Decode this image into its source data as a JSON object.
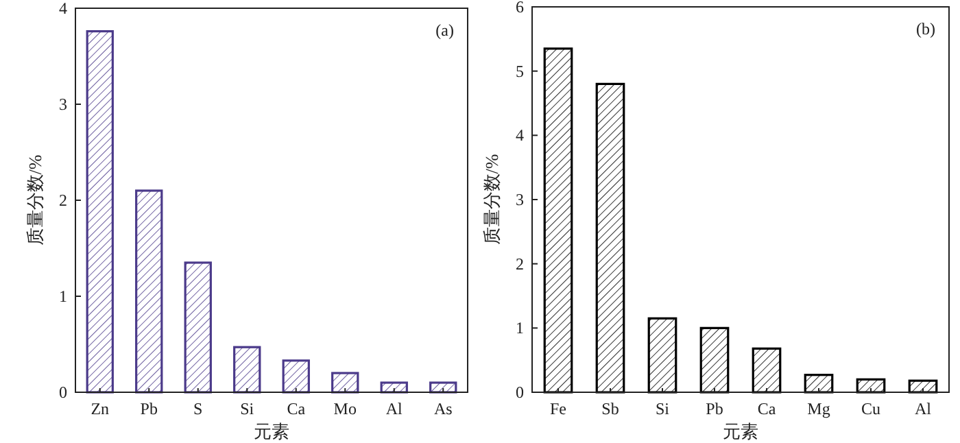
{
  "chart_data": [
    {
      "type": "bar",
      "categories": [
        "Zn",
        "Pb",
        "S",
        "Si",
        "Ca",
        "Mo",
        "Al",
        "As"
      ],
      "xlabel": "元素",
      "ylabel": "质量分数/%",
      "annotations": [
        "(a)"
      ],
      "ylim": [
        0,
        4
      ],
      "yticks": [
        0,
        1,
        2,
        3,
        4
      ],
      "grid": false,
      "series": [
        {
          "color": "#4b3a8a",
          "values": [
            3.76,
            2.1,
            1.35,
            0.47,
            0.33,
            0.2,
            0.1,
            0.1
          ]
        }
      ]
    },
    {
      "type": "bar",
      "categories": [
        "Fe",
        "Sb",
        "Si",
        "Pb",
        "Ca",
        "Mg",
        "Cu",
        "Al"
      ],
      "xlabel": "元素",
      "ylabel": "质量分数/%",
      "annotations": [
        "(b)"
      ],
      "ylim": [
        0,
        6
      ],
      "yticks": [
        0,
        1,
        2,
        3,
        4,
        5,
        6
      ],
      "grid": false,
      "series": [
        {
          "color": "#000000",
          "values": [
            5.35,
            4.8,
            1.15,
            1.0,
            0.68,
            0.27,
            0.2,
            0.18
          ]
        }
      ]
    }
  ]
}
